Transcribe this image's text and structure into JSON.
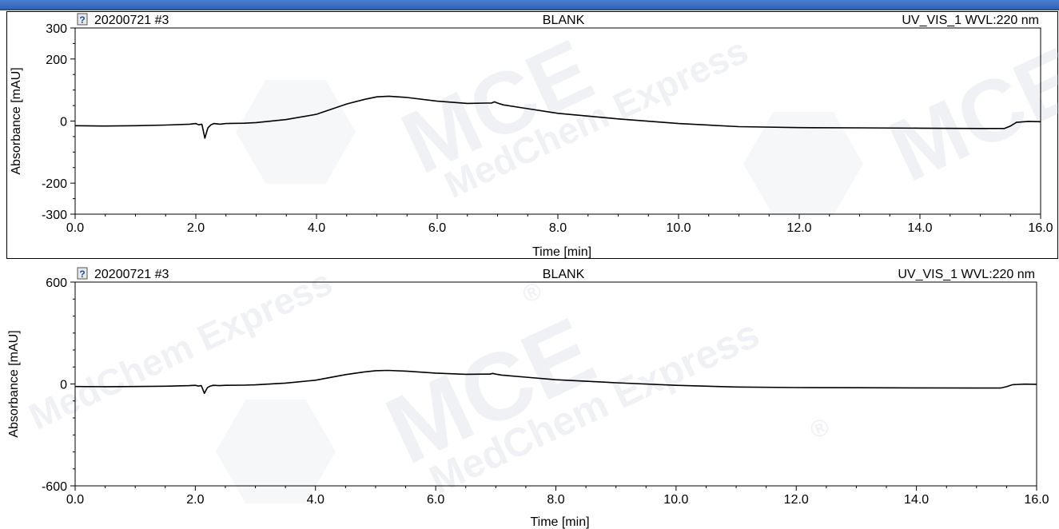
{
  "window": {
    "accent_color": "#3a6cc4"
  },
  "watermark": {
    "brand": "MCE",
    "tagline": "MedChem Express",
    "registered": "®"
  },
  "chart_data": [
    {
      "type": "line",
      "header": {
        "sample": "20200721 #3",
        "name": "BLANK",
        "channel": "UV_VIS_1 WVL:220 nm",
        "icon": "question-mark-icon"
      },
      "xlabel": "Time [min]",
      "ylabel": "Absorbance [mAU]",
      "xlim": [
        0,
        16
      ],
      "ylim": [
        -300,
        300
      ],
      "x_ticks": [
        0,
        2,
        4,
        6,
        8,
        10,
        12,
        14,
        16
      ],
      "x_tick_labels": [
        "0.0",
        "2.0",
        "4.0",
        "6.0",
        "8.0",
        "10.0",
        "12.0",
        "14.0",
        "16.0"
      ],
      "y_ticks": [
        300,
        200,
        0,
        -200,
        -300
      ],
      "y_tick_labels": [
        "300",
        "200",
        "0",
        "-200",
        "-300"
      ],
      "series": [
        {
          "color": "#000000",
          "x": [
            0.0,
            0.5,
            1.0,
            1.5,
            1.9,
            2.0,
            2.05,
            2.1,
            2.15,
            2.2,
            2.25,
            2.3,
            2.4,
            2.5,
            2.8,
            3.0,
            3.5,
            4.0,
            4.5,
            4.8,
            5.0,
            5.2,
            5.5,
            6.0,
            6.5,
            6.8,
            6.9,
            6.95,
            7.0,
            7.1,
            7.5,
            8.0,
            9.0,
            10.0,
            11.0,
            12.0,
            13.0,
            14.0,
            15.0,
            15.4,
            15.5,
            15.6,
            15.8,
            16.0
          ],
          "y": [
            -15,
            -16,
            -15,
            -13,
            -10,
            -8,
            -12,
            -10,
            -55,
            -22,
            -12,
            -8,
            -10,
            -8,
            -7,
            -5,
            5,
            22,
            55,
            70,
            78,
            80,
            76,
            64,
            57,
            58,
            58,
            62,
            58,
            52,
            40,
            25,
            7,
            -8,
            -18,
            -21,
            -22,
            -23,
            -24,
            -24,
            -16,
            -4,
            -1,
            -2
          ]
        }
      ]
    },
    {
      "type": "line",
      "header": {
        "sample": "20200721 #3",
        "name": "BLANK",
        "channel": "UV_VIS_1 WVL:220 nm",
        "icon": "question-mark-icon"
      },
      "xlabel": "Time [min]",
      "ylabel": "Absorbance [mAU]",
      "xlim": [
        0,
        16
      ],
      "ylim": [
        -600,
        600
      ],
      "x_ticks": [
        0,
        2,
        4,
        6,
        8,
        10,
        12,
        14,
        16
      ],
      "x_tick_labels": [
        "0.0",
        "2.0",
        "4.0",
        "6.0",
        "8.0",
        "10.0",
        "12.0",
        "14.0",
        "16.0"
      ],
      "y_ticks": [
        600,
        0,
        -600
      ],
      "y_tick_labels": [
        "600",
        "0",
        "-600"
      ],
      "series": [
        {
          "color": "#000000",
          "x": [
            0.0,
            0.5,
            1.0,
            1.5,
            1.9,
            2.0,
            2.05,
            2.1,
            2.15,
            2.2,
            2.25,
            2.3,
            2.4,
            2.5,
            2.8,
            3.0,
            3.5,
            4.0,
            4.5,
            4.8,
            5.0,
            5.2,
            5.5,
            6.0,
            6.5,
            6.8,
            6.9,
            6.95,
            7.0,
            7.1,
            7.5,
            8.0,
            9.0,
            10.0,
            11.0,
            12.0,
            13.0,
            14.0,
            15.0,
            15.4,
            15.5,
            15.6,
            15.8,
            16.0
          ],
          "y": [
            -15,
            -16,
            -15,
            -13,
            -10,
            -8,
            -12,
            -10,
            -55,
            -22,
            -12,
            -8,
            -10,
            -8,
            -7,
            -5,
            5,
            22,
            55,
            70,
            78,
            80,
            76,
            64,
            57,
            58,
            58,
            62,
            58,
            52,
            40,
            25,
            7,
            -8,
            -18,
            -21,
            -22,
            -23,
            -24,
            -24,
            -16,
            -4,
            -1,
            -2
          ]
        }
      ]
    }
  ]
}
